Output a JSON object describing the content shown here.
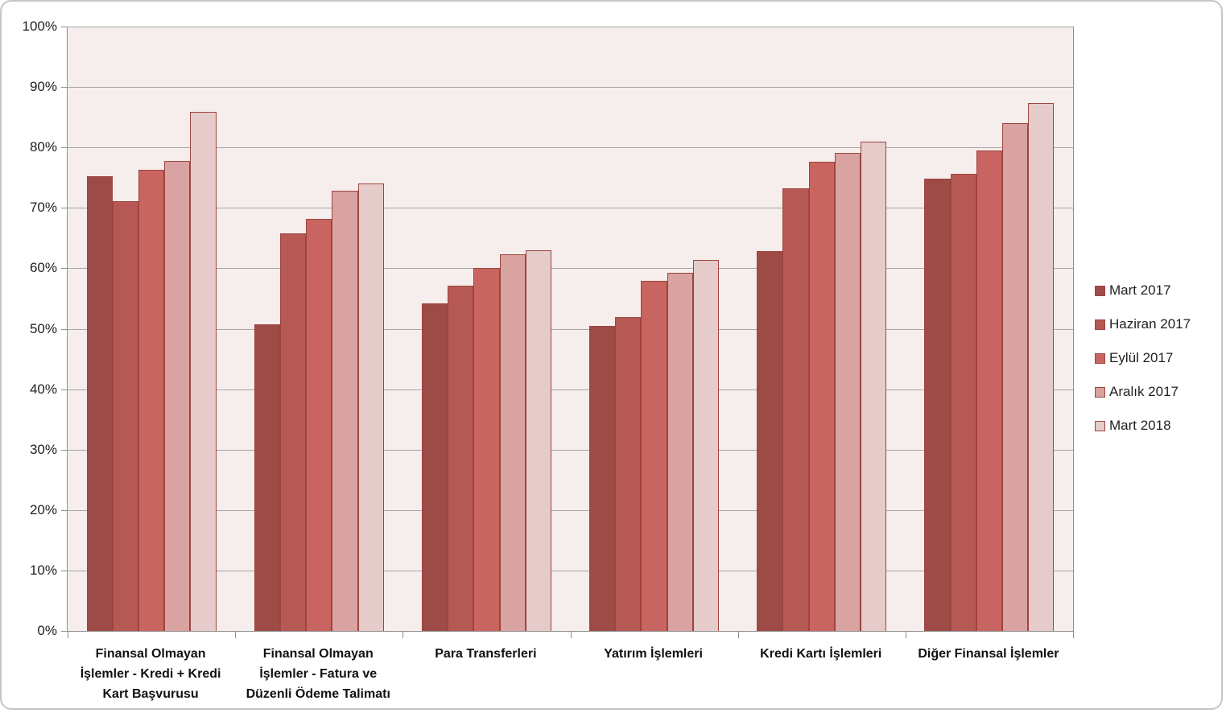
{
  "chart_data": {
    "type": "bar",
    "title": "",
    "xlabel": "",
    "ylabel": "",
    "ylim": [
      0,
      100
    ],
    "grid": "horizontal",
    "legend_position": "right",
    "y_ticks": [
      "0%",
      "10%",
      "20%",
      "30%",
      "40%",
      "50%",
      "60%",
      "70%",
      "80%",
      "90%",
      "100%"
    ],
    "categories": [
      "Finansal Olmayan İşlemler - Kredi + Kredi Kart Başvurusu",
      "Finansal Olmayan İşlemler - Fatura ve Düzenli Ödeme Talimatı",
      "Para Transferleri",
      "Yatırım İşlemleri",
      "Kredi Kartı İşlemleri",
      "Diğer Finansal İşlemler"
    ],
    "series": [
      {
        "name": "Mart 2017",
        "color": "#9e4a47",
        "values": [
          75.3,
          50.8,
          54.2,
          50.5,
          62.8,
          74.8
        ]
      },
      {
        "name": "Haziran 2017",
        "color": "#b65955",
        "values": [
          71.1,
          65.8,
          57.1,
          51.9,
          73.3,
          75.7
        ]
      },
      {
        "name": "Eylül 2017",
        "color": "#c96560",
        "values": [
          76.3,
          68.2,
          60.0,
          57.9,
          77.6,
          79.5
        ]
      },
      {
        "name": "Aralık 2017",
        "color": "#d9a3a1",
        "values": [
          77.8,
          72.8,
          62.3,
          59.2,
          79.1,
          84.0
        ]
      },
      {
        "name": "Mart 2018",
        "color": "#e5cbc9",
        "values": [
          85.9,
          74.1,
          63.0,
          61.4,
          81.0,
          87.3
        ]
      }
    ],
    "colors": {
      "plot_background": "#f6eeec",
      "gridline": "#a6a6a6",
      "axis": "#8f8f8f",
      "bar_border": "#9e443f",
      "frame_border": "#c6c6c6"
    }
  }
}
